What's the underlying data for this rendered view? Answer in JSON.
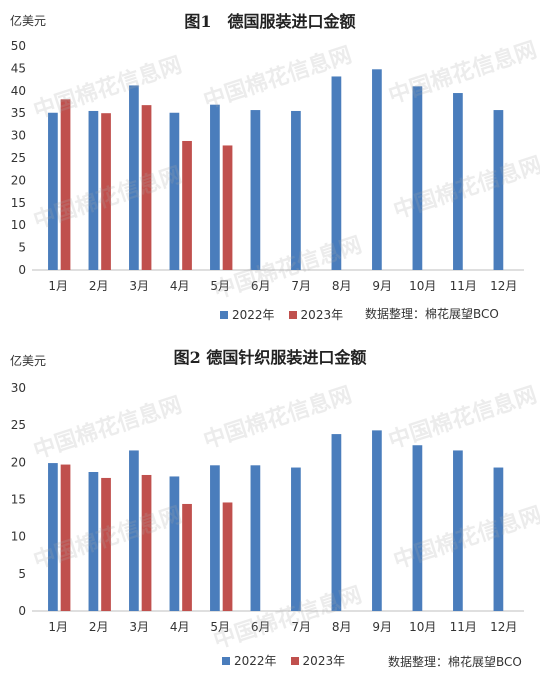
{
  "chart_data": [
    {
      "type": "bar",
      "title": "图1　德国服装进口金额",
      "ylabel": "亿美元",
      "categories": [
        "1月",
        "2月",
        "3月",
        "4月",
        "5月",
        "6月",
        "7月",
        "8月",
        "9月",
        "10月",
        "11月",
        "12月"
      ],
      "series": [
        {
          "name": "2022年",
          "color": "#4a7dbc",
          "values": [
            35.1,
            35.5,
            41.2,
            35.1,
            36.9,
            35.7,
            35.5,
            43.2,
            44.8,
            41.0,
            39.5,
            35.7
          ]
        },
        {
          "name": "2023年",
          "color": "#c0504d",
          "values": [
            38.1,
            35.0,
            36.8,
            28.8,
            27.8,
            null,
            null,
            null,
            null,
            null,
            null,
            null
          ]
        }
      ],
      "ylim": [
        0,
        50
      ],
      "yticks": [
        0,
        5,
        10,
        15,
        20,
        25,
        30,
        35,
        40,
        45,
        50
      ],
      "grid": false,
      "legend": "bottom",
      "source": "数据整理：棉花展望BCO"
    },
    {
      "type": "bar",
      "title": "图2  德国针织服装进口金额",
      "ylabel": "亿美元",
      "categories": [
        "1月",
        "2月",
        "3月",
        "4月",
        "5月",
        "6月",
        "7月",
        "8月",
        "9月",
        "10月",
        "11月",
        "12月"
      ],
      "series": [
        {
          "name": "2022年",
          "color": "#4a7dbc",
          "values": [
            19.9,
            18.7,
            21.6,
            18.1,
            19.6,
            19.6,
            19.3,
            23.8,
            24.3,
            22.3,
            21.6,
            19.3
          ]
        },
        {
          "name": "2023年",
          "color": "#c0504d",
          "values": [
            19.7,
            17.9,
            18.3,
            14.4,
            14.6,
            null,
            null,
            null,
            null,
            null,
            null,
            null
          ]
        }
      ],
      "ylim": [
        0,
        30
      ],
      "yticks": [
        0,
        5,
        10,
        15,
        20,
        25,
        30
      ],
      "grid": false,
      "legend": "bottom",
      "source": "数据整理：棉花展望BCO"
    }
  ],
  "watermark": "中国棉花信息网"
}
